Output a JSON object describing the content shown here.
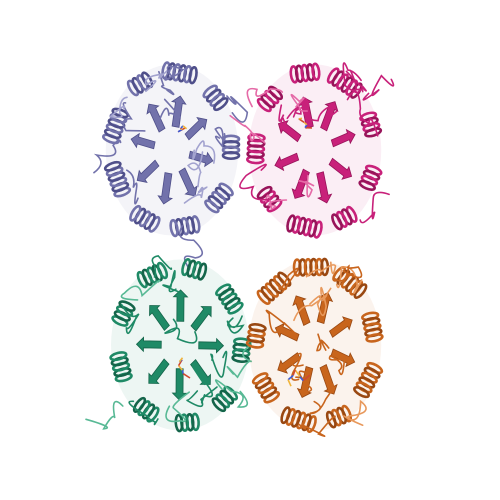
{
  "image": {
    "subject": "protein-tetramer-ribbon-render",
    "background": "#ffffff"
  },
  "chains": [
    {
      "id": "A",
      "color": "#7272ab",
      "shade": "#4f4f8a",
      "highlight": "#a3a3cf"
    },
    {
      "id": "B",
      "color": "#c8217a",
      "shade": "#98145a",
      "highlight": "#e56aa7"
    },
    {
      "id": "C",
      "color": "#1f8a66",
      "shade": "#14654a",
      "highlight": "#58b995"
    },
    {
      "id": "D",
      "color": "#c8651d",
      "shade": "#994812",
      "highlight": "#e8995c"
    }
  ],
  "ligand_colors": [
    "#d04a2f",
    "#3b5bd6",
    "#f0b43a"
  ]
}
